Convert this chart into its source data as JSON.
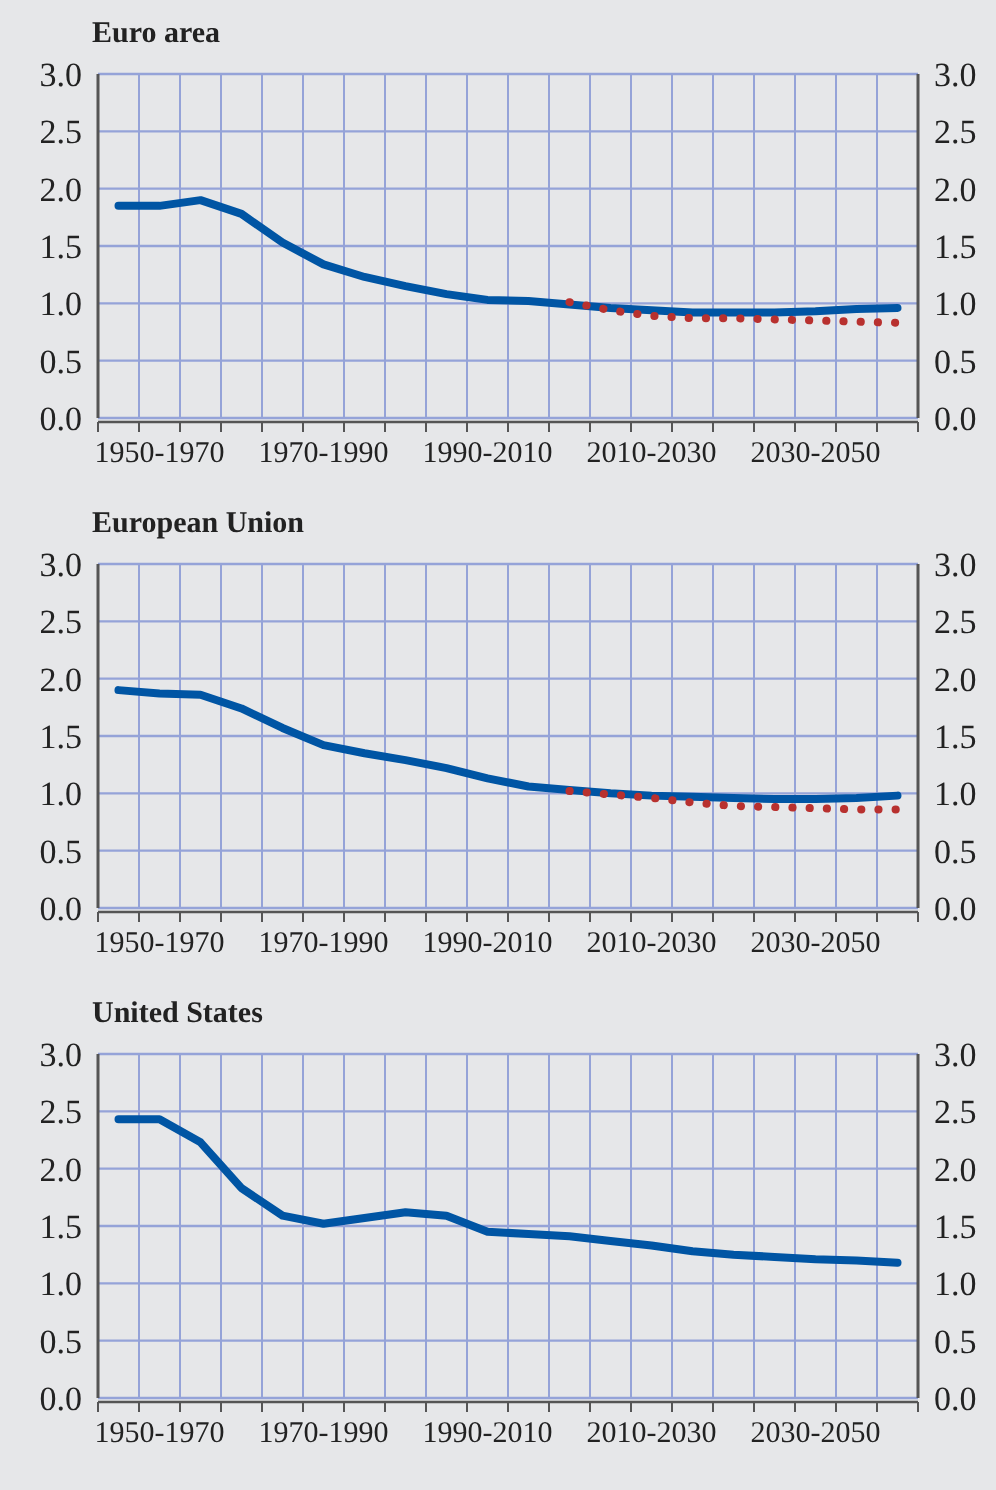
{
  "chart_data": [
    {
      "type": "line",
      "title": "Euro area",
      "categories": [
        null,
        "1950-1970",
        null,
        null,
        null,
        "1970-1990",
        null,
        null,
        null,
        "1990-2010",
        null,
        null,
        null,
        "2010-2030",
        null,
        null,
        null,
        "2030-2050",
        null,
        null
      ],
      "ylim": [
        0,
        3
      ],
      "yticks": [
        {
          "value": 0,
          "label": "0.0"
        },
        {
          "value": 0.5,
          "label": "0.5"
        },
        {
          "value": 1,
          "label": "1.0"
        },
        {
          "value": 1.5,
          "label": "1.5"
        },
        {
          "value": 2,
          "label": "2.0"
        },
        {
          "value": 2.5,
          "label": "2.5"
        },
        {
          "value": 3,
          "label": "3.0"
        }
      ],
      "y2lim": [
        0,
        3
      ],
      "y2ticks": [
        {
          "value": 0,
          "label": "0.0"
        },
        {
          "value": 0.5,
          "label": "0.5"
        },
        {
          "value": 1,
          "label": "1.0"
        },
        {
          "value": 1.5,
          "label": "1.5"
        },
        {
          "value": 2,
          "label": "2.0"
        },
        {
          "value": 2.5,
          "label": "2.5"
        },
        {
          "value": 3,
          "label": "3.0"
        }
      ],
      "grid": true,
      "marker": "none",
      "series": [
        {
          "color": "#0055a4",
          "line_style": "solid",
          "values": [
            1.85,
            1.85,
            1.9,
            1.78,
            1.53,
            1.34,
            1.23,
            1.15,
            1.08,
            1.03,
            1.02,
            0.99,
            0.96,
            0.94,
            0.92,
            0.92,
            0.92,
            0.93,
            0.95,
            0.96
          ]
        },
        {
          "color": "#b8312f",
          "line_style": "dotted",
          "values": [
            null,
            null,
            null,
            null,
            null,
            null,
            null,
            null,
            null,
            null,
            null,
            1.01,
            0.94,
            0.89,
            0.87,
            0.87,
            0.86,
            0.85,
            0.84,
            0.83
          ]
        }
      ]
    },
    {
      "type": "line",
      "title": "European Union",
      "categories": [
        null,
        "1950-1970",
        null,
        null,
        null,
        "1970-1990",
        null,
        null,
        null,
        "1990-2010",
        null,
        null,
        null,
        "2010-2030",
        null,
        null,
        null,
        "2030-2050",
        null,
        null
      ],
      "ylim": [
        0,
        3
      ],
      "yticks": [
        {
          "value": 0,
          "label": "0.0"
        },
        {
          "value": 0.5,
          "label": "0.5"
        },
        {
          "value": 1,
          "label": "1.0"
        },
        {
          "value": 1.5,
          "label": "1.5"
        },
        {
          "value": 2,
          "label": "2.0"
        },
        {
          "value": 2.5,
          "label": "2.5"
        },
        {
          "value": 3,
          "label": "3.0"
        }
      ],
      "y2lim": [
        0,
        3
      ],
      "y2ticks": [
        {
          "value": 0,
          "label": "0.0"
        },
        {
          "value": 0.5,
          "label": "0.5"
        },
        {
          "value": 1,
          "label": "1.0"
        },
        {
          "value": 1.5,
          "label": "1.5"
        },
        {
          "value": 2,
          "label": "2.0"
        },
        {
          "value": 2.5,
          "label": "2.5"
        },
        {
          "value": 3,
          "label": "3.0"
        }
      ],
      "grid": true,
      "marker": "none",
      "series": [
        {
          "color": "#0055a4",
          "line_style": "solid",
          "values": [
            1.9,
            1.87,
            1.86,
            1.74,
            1.57,
            1.42,
            1.35,
            1.29,
            1.22,
            1.13,
            1.06,
            1.03,
            1.0,
            0.98,
            0.97,
            0.96,
            0.95,
            0.95,
            0.96,
            0.98
          ]
        },
        {
          "color": "#b8312f",
          "line_style": "dotted",
          "values": [
            null,
            null,
            null,
            null,
            null,
            null,
            null,
            null,
            null,
            null,
            null,
            1.02,
            0.99,
            0.96,
            0.92,
            0.89,
            0.88,
            0.87,
            0.86,
            0.86
          ]
        }
      ]
    },
    {
      "type": "line",
      "title": "United States",
      "categories": [
        null,
        "1950-1970",
        null,
        null,
        null,
        "1970-1990",
        null,
        null,
        null,
        "1990-2010",
        null,
        null,
        null,
        "2010-2030",
        null,
        null,
        null,
        "2030-2050",
        null,
        null
      ],
      "ylim": [
        0,
        3
      ],
      "yticks": [
        {
          "value": 0,
          "label": "0.0"
        },
        {
          "value": 0.5,
          "label": "0.5"
        },
        {
          "value": 1,
          "label": "1.0"
        },
        {
          "value": 1.5,
          "label": "1.5"
        },
        {
          "value": 2,
          "label": "2.0"
        },
        {
          "value": 2.5,
          "label": "2.5"
        },
        {
          "value": 3,
          "label": "3.0"
        }
      ],
      "y2lim": [
        0,
        3
      ],
      "y2ticks": [
        {
          "value": 0,
          "label": "0.0"
        },
        {
          "value": 0.5,
          "label": "0.5"
        },
        {
          "value": 1,
          "label": "1.0"
        },
        {
          "value": 1.5,
          "label": "1.5"
        },
        {
          "value": 2,
          "label": "2.0"
        },
        {
          "value": 2.5,
          "label": "2.5"
        },
        {
          "value": 3,
          "label": "3.0"
        }
      ],
      "grid": true,
      "marker": "none",
      "series": [
        {
          "color": "#0055a4",
          "line_style": "solid",
          "values": [
            2.43,
            2.43,
            2.23,
            1.83,
            1.59,
            1.52,
            1.57,
            1.62,
            1.59,
            1.45,
            1.43,
            1.41,
            1.37,
            1.33,
            1.28,
            1.25,
            1.23,
            1.21,
            1.2,
            1.18
          ]
        }
      ]
    }
  ]
}
